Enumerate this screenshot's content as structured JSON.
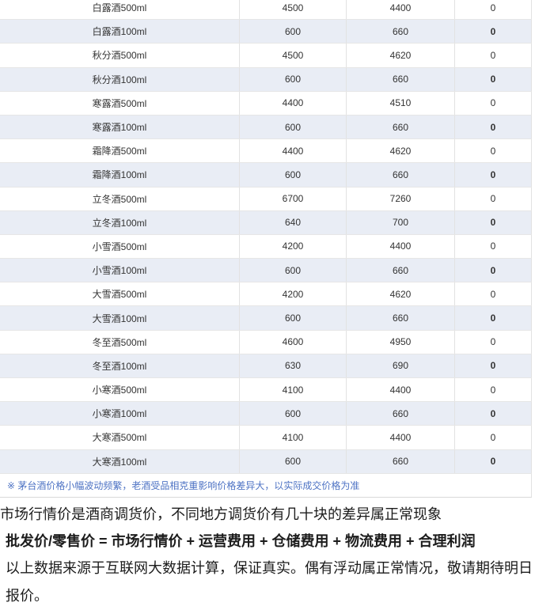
{
  "table": {
    "rows": [
      [
        "白露酒500ml",
        "4500",
        "4400",
        "0"
      ],
      [
        "白露酒100ml",
        "600",
        "660",
        "0"
      ],
      [
        "秋分酒500ml",
        "4500",
        "4620",
        "0"
      ],
      [
        "秋分酒100ml",
        "600",
        "660",
        "0"
      ],
      [
        "寒露酒500ml",
        "4400",
        "4510",
        "0"
      ],
      [
        "寒露酒100ml",
        "600",
        "660",
        "0"
      ],
      [
        "霜降酒500ml",
        "4400",
        "4620",
        "0"
      ],
      [
        "霜降酒100ml",
        "600",
        "660",
        "0"
      ],
      [
        "立冬酒500ml",
        "6700",
        "7260",
        "0"
      ],
      [
        "立冬酒100ml",
        "640",
        "700",
        "0"
      ],
      [
        "小雪酒500ml",
        "4200",
        "4400",
        "0"
      ],
      [
        "小雪酒100ml",
        "600",
        "660",
        "0"
      ],
      [
        "大雪酒500ml",
        "4200",
        "4620",
        "0"
      ],
      [
        "大雪酒100ml",
        "600",
        "660",
        "0"
      ],
      [
        "冬至酒500ml",
        "4600",
        "4950",
        "0"
      ],
      [
        "冬至酒100ml",
        "630",
        "690",
        "0"
      ],
      [
        "小寒酒500ml",
        "4100",
        "4400",
        "0"
      ],
      [
        "小寒酒100ml",
        "600",
        "660",
        "0"
      ],
      [
        "大寒酒500ml",
        "4100",
        "4400",
        "0"
      ],
      [
        "大寒酒100ml",
        "600",
        "660",
        "0"
      ]
    ],
    "note": "※ 茅台酒价格小幅波动频繁，老酒受品相克重影响价格差异大，以实际成交价格为准",
    "stripe_color": "#e9edf5",
    "note_text_color": "#4e73c4"
  },
  "footer": {
    "line1": "市场行情价是酒商调货价，不同地方调货价有几十块的差异属正常现象",
    "line2": "批发价/零售价 = 市场行情价 + 运营费用 + 仓储费用 + 物流费用 + 合理利润",
    "line3": "以上数据来源于互联网大数据计算，保证真实。偶有浮动属正常情况，敬请期待明日",
    "line4": "报价。"
  }
}
